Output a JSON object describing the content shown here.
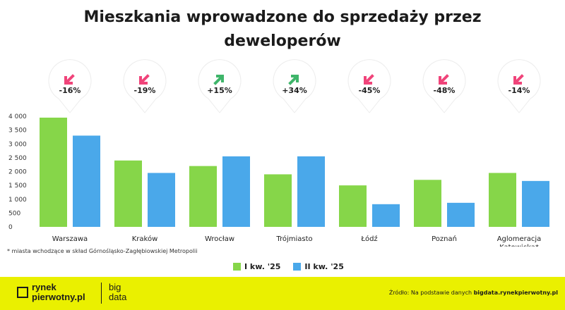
{
  "title_line1": "Mieszkania wprowadzone do sprzedaży przez",
  "title_line2": "deweloperów",
  "footnote": "* miasta wchodzące w skład Górnośląsko-Zagłębiowskiej Metropolii",
  "footer": {
    "logo_line1": "rynek",
    "logo_line2": "pierwotny.pl",
    "big_line1": "big",
    "big_line2": "data",
    "source_prefix": "Źródło: Na podstawie danych ",
    "source_link": "bigdata.rynekpierwotny.pl"
  },
  "colors": {
    "series1": "#86d649",
    "series2": "#4aa8ea",
    "up": "#3fb56a",
    "down": "#f0447a",
    "accent": "#eaf000"
  },
  "chart_data": {
    "type": "bar",
    "categories": [
      "Warszawa",
      "Kraków",
      "Wrocław",
      "Trójmiasto",
      "Łódź",
      "Poznań",
      "Aglomeracja Katowicka*"
    ],
    "category_lines": [
      [
        "Warszawa"
      ],
      [
        "Kraków"
      ],
      [
        "Wrocław"
      ],
      [
        "Trójmiasto"
      ],
      [
        "Łódź"
      ],
      [
        "Poznań"
      ],
      [
        "Aglomeracja",
        "Katowicka*"
      ]
    ],
    "series": [
      {
        "name": "I kw. '25",
        "values": [
          3950,
          2400,
          2200,
          1900,
          1500,
          1700,
          1950
        ]
      },
      {
        "name": "II kw. '25",
        "values": [
          3300,
          1950,
          2550,
          2550,
          820,
          870,
          1660
        ]
      }
    ],
    "changes": [
      "-16%",
      "-19%",
      "+15%",
      "+34%",
      "-45%",
      "-48%",
      "-14%"
    ],
    "directions": [
      "down",
      "down",
      "up",
      "up",
      "down",
      "down",
      "down"
    ],
    "ylim": [
      0,
      4000
    ],
    "yticks": [
      "0",
      "500",
      "1 000",
      "1 500",
      "2 000",
      "2 500",
      "3 000",
      "3 500",
      "4 000"
    ],
    "ytick_values": [
      0,
      500,
      1000,
      1500,
      2000,
      2500,
      3000,
      3500,
      4000
    ],
    "grid": false,
    "legend": "bottom-center"
  }
}
